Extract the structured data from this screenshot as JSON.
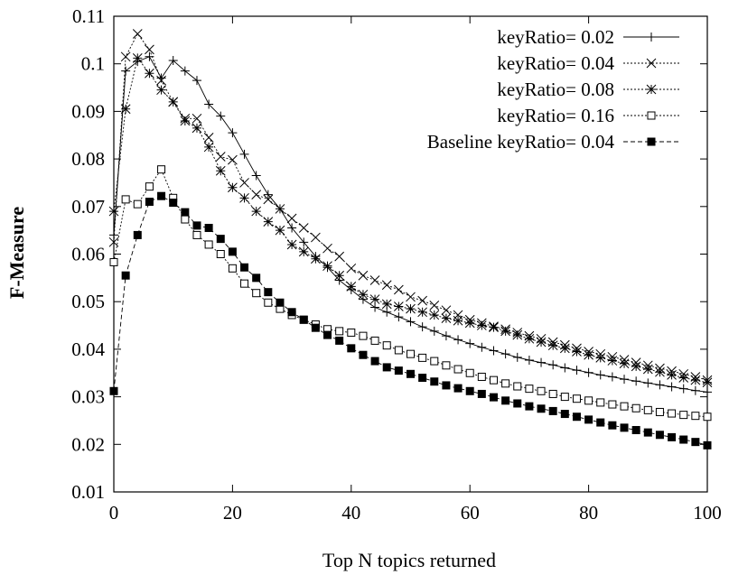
{
  "chart_data": {
    "type": "line",
    "title": "",
    "xlabel": "Top N topics returned",
    "ylabel": "F-Measure",
    "xlim": [
      0,
      100
    ],
    "ylim": [
      0.01,
      0.11
    ],
    "x_ticks": [
      0,
      20,
      40,
      60,
      80,
      100
    ],
    "y_ticks": [
      0.01,
      0.02,
      0.03,
      0.04,
      0.05,
      0.06,
      0.07,
      0.08,
      0.09,
      0.1,
      0.11
    ],
    "x_tick_labels": [
      "0",
      "20",
      "40",
      "60",
      "80",
      "100"
    ],
    "y_tick_labels": [
      "0.01",
      "0.02",
      "0.03",
      "0.04",
      "0.05",
      "0.06",
      "0.07",
      "0.08",
      "0.09",
      "0.1",
      "0.11"
    ],
    "grid": false,
    "legend_position": "top-right",
    "series": [
      {
        "name": "keyRatio= 0.02",
        "marker": "plus",
        "dash": "solid",
        "color": "#000000",
        "x": [
          0,
          2,
          4,
          6,
          8,
          10,
          12,
          14,
          16,
          18,
          20,
          22,
          24,
          26,
          28,
          30,
          32,
          34,
          36,
          38,
          40,
          42,
          44,
          46,
          48,
          50,
          52,
          54,
          56,
          58,
          60,
          62,
          64,
          66,
          68,
          70,
          72,
          74,
          76,
          78,
          80,
          82,
          84,
          86,
          88,
          90,
          92,
          94,
          96,
          98,
          100
        ],
        "y": [
          0.064,
          0.0985,
          0.1005,
          0.1015,
          0.097,
          0.1007,
          0.0985,
          0.0965,
          0.0915,
          0.089,
          0.0855,
          0.081,
          0.0765,
          0.0725,
          0.0695,
          0.0655,
          0.0625,
          0.0595,
          0.0572,
          0.0545,
          0.0525,
          0.0505,
          0.0488,
          0.0478,
          0.0468,
          0.0458,
          0.0447,
          0.0438,
          0.0428,
          0.042,
          0.0412,
          0.0404,
          0.0397,
          0.039,
          0.0383,
          0.0377,
          0.0372,
          0.0367,
          0.0361,
          0.0356,
          0.0351,
          0.0346,
          0.0342,
          0.0337,
          0.0333,
          0.0329,
          0.0325,
          0.0321,
          0.0317,
          0.0313,
          0.031
        ]
      },
      {
        "name": "keyRatio= 0.04",
        "marker": "cross",
        "dash": "dotted",
        "color": "#000000",
        "x": [
          0,
          2,
          4,
          6,
          8,
          10,
          12,
          14,
          16,
          18,
          20,
          22,
          24,
          26,
          28,
          30,
          32,
          34,
          36,
          38,
          40,
          42,
          44,
          46,
          48,
          50,
          52,
          54,
          56,
          58,
          60,
          62,
          64,
          66,
          68,
          70,
          72,
          74,
          76,
          78,
          80,
          82,
          84,
          86,
          88,
          90,
          92,
          94,
          96,
          98,
          100
        ],
        "y": [
          0.0625,
          0.1015,
          0.1063,
          0.103,
          0.0965,
          0.092,
          0.0885,
          0.0885,
          0.0845,
          0.0805,
          0.0798,
          0.075,
          0.0725,
          0.0715,
          0.0695,
          0.0675,
          0.0655,
          0.0635,
          0.0612,
          0.0595,
          0.057,
          0.0555,
          0.0545,
          0.0535,
          0.0525,
          0.051,
          0.0502,
          0.0492,
          0.0482,
          0.0472,
          0.0462,
          0.0455,
          0.0448,
          0.0442,
          0.0435,
          0.0428,
          0.0422,
          0.0415,
          0.0409,
          0.0402,
          0.0395,
          0.039,
          0.0384,
          0.0378,
          0.0372,
          0.0366,
          0.036,
          0.0354,
          0.0348,
          0.0342,
          0.0335
        ]
      },
      {
        "name": "keyRatio= 0.08",
        "marker": "asterisk",
        "dash": "dotted",
        "color": "#000000",
        "x": [
          0,
          2,
          4,
          6,
          8,
          10,
          12,
          14,
          16,
          18,
          20,
          22,
          24,
          26,
          28,
          30,
          32,
          34,
          36,
          38,
          40,
          42,
          44,
          46,
          48,
          50,
          52,
          54,
          56,
          58,
          60,
          62,
          64,
          66,
          68,
          70,
          72,
          74,
          76,
          78,
          80,
          82,
          84,
          86,
          88,
          90,
          92,
          94,
          96,
          98,
          100
        ],
        "y": [
          0.069,
          0.0905,
          0.1012,
          0.098,
          0.0945,
          0.092,
          0.088,
          0.0865,
          0.0825,
          0.0775,
          0.074,
          0.0718,
          0.069,
          0.0668,
          0.065,
          0.062,
          0.0605,
          0.059,
          0.0575,
          0.0555,
          0.0532,
          0.0515,
          0.0505,
          0.0495,
          0.049,
          0.0485,
          0.0478,
          0.0472,
          0.0465,
          0.046,
          0.0455,
          0.045,
          0.0446,
          0.0438,
          0.043,
          0.0422,
          0.0415,
          0.0408,
          0.0402,
          0.0395,
          0.0388,
          0.0382,
          0.0376,
          0.037,
          0.0364,
          0.0358,
          0.0352,
          0.0346,
          0.034,
          0.0335,
          0.033
        ]
      },
      {
        "name": "keyRatio= 0.16",
        "marker": "open-square",
        "dash": "dotted",
        "color": "#000000",
        "x": [
          0,
          2,
          4,
          6,
          8,
          10,
          12,
          14,
          16,
          18,
          20,
          22,
          24,
          26,
          28,
          30,
          32,
          34,
          36,
          38,
          40,
          42,
          44,
          46,
          48,
          50,
          52,
          54,
          56,
          58,
          60,
          62,
          64,
          66,
          68,
          70,
          72,
          74,
          76,
          78,
          80,
          82,
          84,
          86,
          88,
          90,
          92,
          94,
          96,
          98,
          100
        ],
        "y": [
          0.0583,
          0.0715,
          0.0705,
          0.0742,
          0.0778,
          0.0718,
          0.0673,
          0.064,
          0.062,
          0.06,
          0.057,
          0.0538,
          0.0518,
          0.0498,
          0.0485,
          0.0472,
          0.0462,
          0.0452,
          0.0442,
          0.0438,
          0.0435,
          0.0428,
          0.0418,
          0.0408,
          0.0398,
          0.039,
          0.0382,
          0.0375,
          0.0366,
          0.0358,
          0.035,
          0.0342,
          0.0335,
          0.0328,
          0.0322,
          0.0317,
          0.0312,
          0.0306,
          0.03,
          0.0296,
          0.0292,
          0.0288,
          0.0284,
          0.028,
          0.0276,
          0.0272,
          0.0268,
          0.0265,
          0.0262,
          0.026,
          0.0258
        ]
      },
      {
        "name": "Baseline keyRatio= 0.04",
        "marker": "filled-square",
        "dash": "dashed",
        "color": "#000000",
        "x": [
          0,
          2,
          4,
          6,
          8,
          10,
          12,
          14,
          16,
          18,
          20,
          22,
          24,
          26,
          28,
          30,
          32,
          34,
          36,
          38,
          40,
          42,
          44,
          46,
          48,
          50,
          52,
          54,
          56,
          58,
          60,
          62,
          64,
          66,
          68,
          70,
          72,
          74,
          76,
          78,
          80,
          82,
          84,
          86,
          88,
          90,
          92,
          94,
          96,
          98,
          100
        ],
        "y": [
          0.0312,
          0.0555,
          0.064,
          0.071,
          0.0722,
          0.0708,
          0.0688,
          0.066,
          0.0655,
          0.0632,
          0.0605,
          0.0572,
          0.055,
          0.052,
          0.0498,
          0.0478,
          0.0462,
          0.0445,
          0.043,
          0.0418,
          0.0402,
          0.0388,
          0.0375,
          0.0362,
          0.0355,
          0.0348,
          0.034,
          0.0332,
          0.0324,
          0.0318,
          0.0312,
          0.0306,
          0.0299,
          0.0292,
          0.0286,
          0.028,
          0.0275,
          0.027,
          0.0264,
          0.0258,
          0.0252,
          0.0246,
          0.024,
          0.0235,
          0.023,
          0.0225,
          0.022,
          0.0215,
          0.021,
          0.0205,
          0.0198
        ]
      }
    ]
  }
}
